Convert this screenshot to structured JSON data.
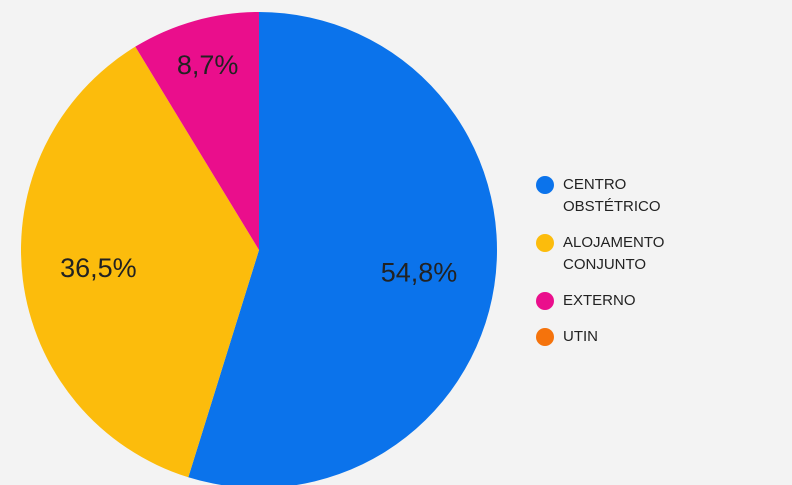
{
  "chart_data": {
    "type": "pie",
    "categories": [
      "CENTRO OBSTÉTRICO",
      "ALOJAMENTO CONJUNTO",
      "EXTERNO",
      "UTIN"
    ],
    "values": [
      54.8,
      36.5,
      8.7,
      0
    ],
    "value_labels": [
      "54,8%",
      "36,5%",
      "8,7%",
      null
    ],
    "colors": [
      "#0b73eb",
      "#fcbc0c",
      "#ea0e8c",
      "#f5730c"
    ],
    "legend": "right"
  }
}
